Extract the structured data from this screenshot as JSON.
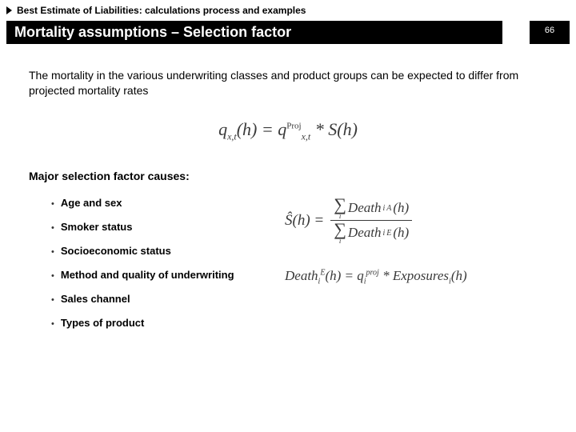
{
  "breadcrumb": {
    "text": "Best Estimate of Liabilities: calculations process and examples"
  },
  "titlebar": {
    "title": "Mortality assumptions – Selection factor",
    "page_number": "66"
  },
  "intro": "The mortality in the various underwriting classes and product groups can be expected to differ from projected mortality rates",
  "formula_main": {
    "lhs_symbol": "q",
    "lhs_sub": "x,t",
    "lhs_arg": "(h)",
    "rhs_symbol": "q",
    "rhs_sub": "x,t",
    "rhs_sup": "Proj",
    "rhs_tail": " * S(h)"
  },
  "causes": {
    "heading": "Major selection factor causes:",
    "items": [
      "Age and sex",
      "Smoker status",
      "Socioeconomic status",
      "Method and quality of underwriting",
      "Sales channel",
      "Types of product"
    ]
  },
  "frac_formula": {
    "lhs": "Ŝ(h) =",
    "num_term": "Death",
    "num_sub": "i",
    "num_sup": "A",
    "num_arg": "(h)",
    "den_term": "Death",
    "den_sub": "i",
    "den_sup": "E",
    "den_arg": "(h)"
  },
  "death_formula": {
    "lhs_term": "Death",
    "lhs_sub": "i",
    "lhs_sup": "E",
    "lhs_arg": "(h) = ",
    "q_term": "q",
    "q_sub": "i",
    "q_sup": "proj",
    "tail": " * Exposures",
    "tail_sub": "i",
    "tail_arg": "(h)"
  },
  "colors": {
    "bar_bg": "#000000",
    "bar_fg": "#ffffff",
    "text": "#000000",
    "formula": "#3a3a3a"
  }
}
